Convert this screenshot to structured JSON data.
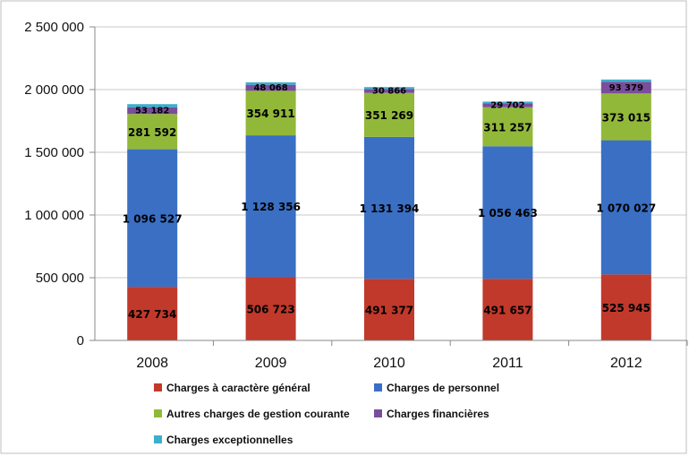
{
  "chart_data": {
    "type": "bar",
    "stacked": true,
    "categories": [
      "2008",
      "2009",
      "2010",
      "2011",
      "2012"
    ],
    "ylim": [
      0,
      2500000
    ],
    "yticks": [
      0,
      500000,
      1000000,
      1500000,
      2000000,
      2500000
    ],
    "ytick_labels": [
      "0",
      "500 000",
      "1 000 000",
      "1 500 000",
      "2 000 000",
      "2 500 000"
    ],
    "grid": true,
    "legend_position": "bottom",
    "series": [
      {
        "name": "Charges à caractère général",
        "color": "#C0392B",
        "values": [
          427734,
          506723,
          491377,
          491657,
          525945
        ],
        "labels": [
          "427 734",
          "506 723",
          "491 377",
          "491 657",
          "525 945"
        ]
      },
      {
        "name": "Charges de personnel",
        "color": "#3A6FC4",
        "values": [
          1096527,
          1128356,
          1131394,
          1056463,
          1070027
        ],
        "labels": [
          "1 096 527",
          "1 128 356",
          "1 131 394",
          "1 056 463",
          "1 070 027"
        ]
      },
      {
        "name": "Autres charges de gestion courante",
        "color": "#92B83A",
        "values": [
          281592,
          354911,
          351269,
          311257,
          373015
        ],
        "labels": [
          "281 592",
          "354 911",
          "351 269",
          "311 257",
          "373 015"
        ]
      },
      {
        "name": "Charges financières",
        "color": "#7A4E9C",
        "values": [
          53182,
          48068,
          30866,
          29702,
          93379
        ],
        "labels": [
          "53 182",
          "48 068",
          "30 866",
          "29 702",
          "93 379"
        ]
      },
      {
        "name": "Charges exceptionnelles",
        "color": "#3BAFCB",
        "values": [
          25000,
          20000,
          15000,
          15000,
          18000
        ],
        "labels": [
          "",
          "",
          "",
          "",
          ""
        ]
      }
    ]
  }
}
